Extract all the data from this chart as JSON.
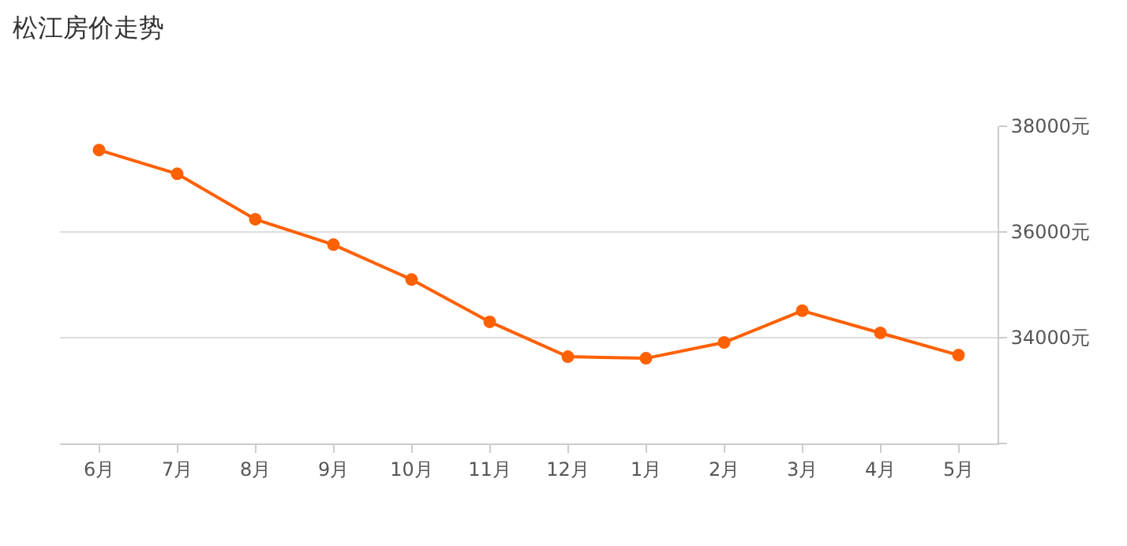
{
  "chart_data": {
    "type": "line",
    "title": "松江房价走势",
    "categories": [
      "6月",
      "7月",
      "8月",
      "9月",
      "10月",
      "11月",
      "12月",
      "1月",
      "2月",
      "3月",
      "4月",
      "5月"
    ],
    "series": [
      {
        "color": "#ff6000",
        "values": [
          37550,
          37100,
          36240,
          35760,
          35100,
          34300,
          33640,
          33610,
          33910,
          34510,
          34090,
          33670
        ]
      }
    ],
    "ylim": [
      32000,
      38000
    ],
    "yticks": [
      {
        "value": 32000,
        "label": null
      },
      {
        "value": 34000,
        "label": "34000元"
      },
      {
        "value": 36000,
        "label": "36000元"
      },
      {
        "value": 38000,
        "label": "38000元"
      }
    ],
    "grid": "y",
    "marker": "circle",
    "line_style": "solid"
  }
}
